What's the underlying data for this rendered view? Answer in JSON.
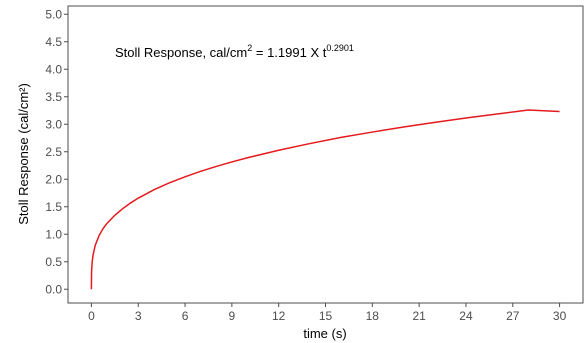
{
  "chart_data": {
    "type": "line",
    "title": "",
    "xlabel": "time (s)",
    "ylabel": "Stoll Response (cal/cm²)",
    "xlim": [
      -1.5,
      31.5
    ],
    "ylim": [
      -0.25,
      5.15
    ],
    "x_ticks": [
      0,
      3,
      6,
      9,
      12,
      15,
      18,
      21,
      24,
      27,
      30
    ],
    "y_ticks": [
      0.0,
      0.5,
      1.0,
      1.5,
      2.0,
      2.5,
      3.0,
      3.5,
      4.0,
      4.5,
      5.0
    ],
    "x_tick_labels": [
      "0",
      "3",
      "6",
      "9",
      "12",
      "15",
      "18",
      "21",
      "24",
      "27",
      "30"
    ],
    "y_tick_labels": [
      "0.0",
      "0.5",
      "1.0",
      "1.5",
      "2.0",
      "2.5",
      "3.0",
      "3.5",
      "4.0",
      "4.5",
      "5.0"
    ],
    "grid": false,
    "line_color": "#e41a1c",
    "annotation": {
      "prefix": "Stoll Response, cal/cm",
      "sup1": "2",
      "middle": " = 1.1991  X  t",
      "sup2": "0.2901"
    },
    "series": [
      {
        "x": [
          0,
          0.01,
          0.05,
          0.1,
          0.25,
          0.5,
          0.75,
          1,
          1.5,
          2,
          2.5,
          3,
          4,
          5,
          6,
          7,
          8,
          9,
          10,
          12,
          14,
          16,
          18,
          20,
          22,
          24,
          26,
          28,
          30
        ],
        "y": [
          0,
          0.315,
          0.502,
          0.614,
          0.803,
          0.981,
          1.104,
          1.199,
          1.345,
          1.465,
          1.567,
          1.656,
          1.808,
          1.935,
          2.045,
          2.144,
          2.233,
          2.315,
          2.391,
          2.527,
          2.649,
          2.761,
          2.858,
          2.95,
          3.034,
          3.113,
          3.187,
          3.258,
          3.231
        ]
      }
    ]
  }
}
